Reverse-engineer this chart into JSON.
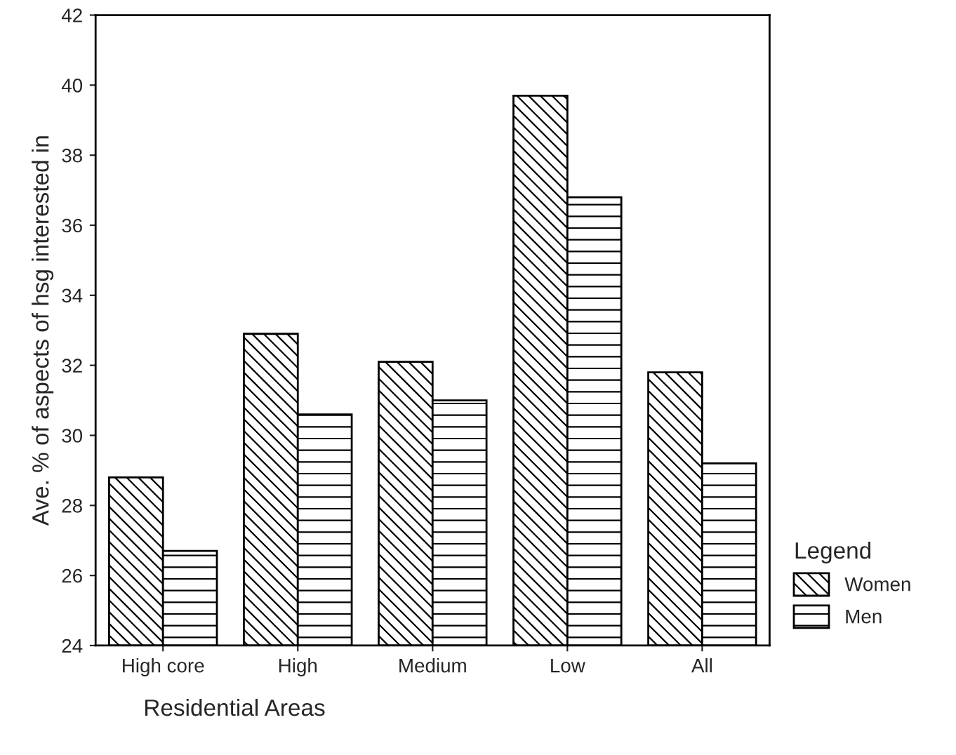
{
  "chart_data": {
    "type": "bar",
    "xlabel": "Residential Areas",
    "ylabel": "Ave. % of aspects of hsg interested in",
    "legend_title": "Legend",
    "categories": [
      "High core",
      "High",
      "Medium",
      "Low",
      "All"
    ],
    "series": [
      {
        "name": "Women",
        "color": "#000000",
        "values": [
          28.8,
          32.9,
          32.1,
          39.7,
          31.8
        ]
      },
      {
        "name": "Men",
        "color": "#000000",
        "values": [
          26.7,
          30.6,
          31.0,
          36.8,
          29.2
        ]
      }
    ],
    "ylim": [
      24,
      42
    ],
    "yticks": [
      24,
      26,
      28,
      30,
      32,
      34,
      36,
      38,
      40,
      42
    ],
    "grid": false,
    "legend": "right"
  }
}
